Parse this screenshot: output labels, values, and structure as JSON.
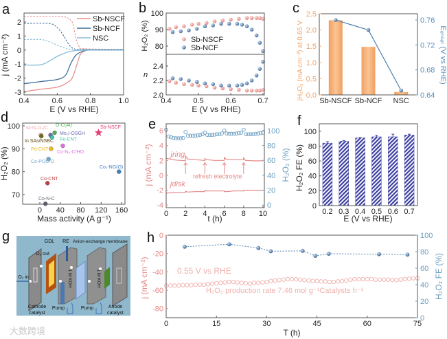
{
  "watermark": "大数跨境",
  "colors": {
    "nscf": "#e8908c",
    "ncf": "#3f6f9a",
    "nsc": "#86bcd8",
    "orange": "#f2a262",
    "blue": "#5b8fb9",
    "hatch": "#3c3fa0",
    "pinkAxis": "#e58787"
  },
  "chart_data": [
    {
      "panel": "a",
      "type": "line",
      "xlabel": "E (V vs RHE)",
      "ylabel": "j (mA cm⁻²)",
      "xlim": [
        0.4,
        1.0
      ],
      "ylim": [
        -3.2,
        2.64
      ],
      "xticks": [
        "0.4",
        "0.6",
        "0.8",
        "1.0"
      ],
      "yticks": [
        "-3",
        "-2",
        "-1",
        "0",
        "1",
        "2"
      ],
      "legend": "top-right",
      "series": [
        {
          "name": "Sb-NSCF",
          "color": "#e8908c",
          "disk": {
            "E": [
              0.4,
              0.5,
              0.6,
              0.65,
              0.69,
              0.72,
              0.74,
              0.77,
              0.8,
              1.0
            ],
            "j": [
              -2.97,
              -2.8,
              -2.65,
              -2.4,
              -2.0,
              -1.0,
              -0.3,
              -0.05,
              0,
              0
            ]
          },
          "ring": {
            "E": [
              0.4,
              0.6,
              0.65,
              0.69,
              0.71,
              0.73,
              0.76,
              1.0
            ],
            "j": [
              2.4,
              2.4,
              2.35,
              2.0,
              1.0,
              0.3,
              0.1,
              0.05
            ]
          }
        },
        {
          "name": "Sb-NCF",
          "color": "#3f6f9a",
          "disk": {
            "E": [
              0.4,
              0.5,
              0.6,
              0.65,
              0.68,
              0.71,
              0.75,
              0.8,
              1.0
            ],
            "j": [
              -2.4,
              -2.25,
              -2.1,
              -1.8,
              -1.0,
              -0.4,
              -0.1,
              0,
              0
            ]
          },
          "ring": {
            "E": [
              0.4,
              0.55,
              0.6,
              0.64,
              0.67,
              0.7,
              0.75,
              1.0
            ],
            "j": [
              1.9,
              1.9,
              1.6,
              1.0,
              0.4,
              0.1,
              0.05,
              0.05
            ]
          }
        },
        {
          "name": "NSC",
          "color": "#86bcd8",
          "disk": {
            "E": [
              0.4,
              0.5,
              0.55,
              0.6,
              0.65,
              0.7,
              0.8,
              1.0
            ],
            "j": [
              -1.07,
              -1.05,
              -0.8,
              -0.45,
              -0.2,
              -0.05,
              0,
              0
            ]
          },
          "ring": {
            "E": [
              0.4,
              0.5,
              0.55,
              0.6,
              0.65,
              0.7,
              1.0
            ],
            "j": [
              0.75,
              0.75,
              0.6,
              0.35,
              0.15,
              0.05,
              0.05
            ]
          }
        }
      ]
    },
    {
      "panel": "b",
      "type": "scatter",
      "xlabel": "E (V vs RHE)",
      "xlim": [
        0.4,
        0.7
      ],
      "xticks": [
        "0.4",
        "0.5",
        "0.6",
        "0.7"
      ],
      "legend": "middle-left",
      "upper": {
        "ylabel": "H₂O₂ (%)",
        "ylim": [
          75,
          100
        ],
        "yticks": [
          "80",
          "90",
          "100"
        ]
      },
      "lower": {
        "ylabel": "n",
        "ylim": [
          2.0,
          2.562
        ],
        "yticks": [
          "2.0",
          "2.2",
          "2.4"
        ]
      },
      "series": [
        {
          "name": "Sb-NSCF",
          "color": "#e8908c",
          "E": [
            0.41,
            0.43,
            0.455,
            0.48,
            0.5,
            0.525,
            0.55,
            0.575,
            0.6,
            0.625,
            0.65,
            0.665,
            0.68,
            0.69,
            0.7
          ],
          "H2O2": [
            90.5,
            91.5,
            92,
            93,
            93.5,
            94,
            95,
            95.5,
            96,
            96.5,
            97,
            97,
            97,
            97,
            96.5
          ],
          "n": [
            2.19,
            2.17,
            2.15,
            2.14,
            2.13,
            2.12,
            2.1,
            2.09,
            2.08,
            2.07,
            2.06,
            2.06,
            2.06,
            2.06,
            2.07
          ]
        },
        {
          "name": "Sb-NCF",
          "color": "#3f6f9a",
          "E": [
            0.42,
            0.445,
            0.47,
            0.495,
            0.52,
            0.545,
            0.57,
            0.595,
            0.62,
            0.635,
            0.65,
            0.665,
            0.68,
            0.69,
            0.7
          ],
          "H2O2": [
            88.5,
            89,
            89.5,
            90.5,
            92,
            92.5,
            93.5,
            93.5,
            93.5,
            93,
            92,
            90,
            86.5,
            82,
            77
          ],
          "n": [
            2.23,
            2.22,
            2.2,
            2.18,
            2.16,
            2.15,
            2.13,
            2.13,
            2.13,
            2.14,
            2.16,
            2.2,
            2.27,
            2.36,
            2.46
          ]
        }
      ]
    },
    {
      "panel": "c",
      "type": "bar",
      "categories": [
        "Sb-NSCF",
        "Sb-NCF",
        "NSC"
      ],
      "bar_values": [
        2.3,
        1.48,
        0.09
      ],
      "line_values": [
        0.76,
        0.744,
        0.647
      ],
      "ylabel": "jH₂O₂ (mA cm⁻²) at 0.65 V",
      "y2label": "Eₒₙₛₑₜ (V vs RHE)",
      "ylim": [
        0,
        2.5
      ],
      "y2lim": [
        0.64,
        0.77
      ],
      "yticks": [
        "0.0",
        "0.5",
        "1.0",
        "1.5",
        "2.0",
        "2.5"
      ],
      "y2ticks": [
        "0.64",
        "0.68",
        "0.72",
        "0.76"
      ]
    },
    {
      "panel": "d",
      "type": "scatter",
      "xlabel": "Mass activity (A g⁻¹)",
      "ylabel": "H₂O₂ (%)",
      "xlim": [
        -33.6,
        166.7
      ],
      "ylim": [
        65.8,
        101.2
      ],
      "xticks": [
        "0",
        "40",
        "80",
        "120",
        "160"
      ],
      "yticks": [
        "70",
        "80",
        "90",
        "100"
      ],
      "points": [
        {
          "label": "Ni-N₂O₂/C",
          "x": 2,
          "y": 96,
          "color": "#f4a8a8",
          "lx": -18,
          "ly": 98.6
        },
        {
          "label": "In SAs/NSBC",
          "x": 3,
          "y": 95.5,
          "color": "#7a6a20",
          "lx": -24,
          "ly": 93.6
        },
        {
          "label": "O-C(Al)",
          "x": 29,
          "y": 97,
          "color": "#4caf50",
          "lx": 16,
          "ly": 99.3
        },
        {
          "label": "Mo₁/-OSGH",
          "x": 21,
          "y": 96,
          "color": "#6a6ab0",
          "lx": 28,
          "ly": 96.6
        },
        {
          "label": "Fe-CNT",
          "x": 24,
          "y": 95,
          "color": "#40c0b0",
          "lx": 28,
          "ly": 93.5
        },
        {
          "label": "Pd-CNT",
          "x": 22,
          "y": 90,
          "color": "#e8b820",
          "lx": -21,
          "ly": 89.2
        },
        {
          "label": "Co-N₃-C/HO",
          "x": 45,
          "y": 91.3,
          "color": "#e070e0",
          "lx": 24,
          "ly": 88.3
        },
        {
          "label": "Co-POC-O",
          "x": 17,
          "y": 85.5,
          "color": "#70a8d0",
          "lx": -3,
          "ly": 82.7
        },
        {
          "label": "Co₁-NG(O)",
          "x": 155,
          "y": 80,
          "color": "#4080c0",
          "lx": 121,
          "ly": 82.2
        },
        {
          "label": "Co-CNT",
          "x": 15,
          "y": 75,
          "color": "#c04040",
          "lx": -0.5,
          "ly": 76.9
        },
        {
          "label": "Co-N-C",
          "x": 11,
          "y": 66,
          "color": "#606070",
          "lx": -2,
          "ly": 68.2
        },
        {
          "label": "Sb-NSCF",
          "x": 115,
          "y": 97,
          "color": "#e0407a",
          "lx": 108,
          "ly": 99.4,
          "star": true
        }
      ]
    },
    {
      "panel": "e",
      "type": "line",
      "xlabel": "t (h)",
      "ylabel": "j (mA cm⁻²)",
      "y2label": "H₂O₂ (%)",
      "xlim": [
        0,
        10.14
      ],
      "ylim": [
        -4.35,
        6.93
      ],
      "y2lim": [
        -3.5,
        109
      ],
      "xticks": [
        "0",
        "2",
        "4",
        "6",
        "8",
        "10"
      ],
      "yticks": [
        "-4",
        "-2",
        "0",
        "2",
        "4",
        "6"
      ],
      "y2ticks": [
        "0",
        "20",
        "40",
        "60",
        "80",
        "100"
      ],
      "ring_label": "jring",
      "disk_label": "jdisk",
      "annotation": "refresh electrolyte",
      "refresh_times": [
        2,
        4,
        6,
        8
      ],
      "t": [
        0,
        0.5,
        1,
        1.5,
        1.99,
        2,
        2.2,
        3,
        3.99,
        4,
        4.2,
        5,
        5.99,
        6,
        6.2,
        7,
        7.99,
        8,
        8.2,
        9,
        10
      ],
      "j_ring": [
        2.3,
        2.15,
        2.05,
        2.0,
        1.95,
        2.6,
        2.2,
        2.1,
        2.0,
        2.25,
        2.1,
        2.0,
        2.0,
        2.4,
        2.15,
        2.1,
        2.1,
        2.35,
        2.0,
        1.95,
        1.95
      ],
      "j_disk": [
        -2.4,
        -2.35,
        -2.35,
        -2.3,
        -2.3,
        -2.15,
        -2.25,
        -2.2,
        -2.2,
        -2.05,
        -2.1,
        -2.1,
        -2.1,
        -2.2,
        -2.2,
        -2.1,
        -2.1,
        -2.0,
        -2.0,
        -2.0,
        -2.0
      ],
      "H2O2": [
        101,
        92,
        91,
        90,
        89.5,
        89.5,
        89.5,
        90,
        98,
        93,
        93,
        93,
        93,
        93.5,
        94,
        95,
        97,
        94,
        94,
        94,
        94.5,
        95,
        95,
        96,
        100,
        96,
        95.5,
        95.5,
        95.5,
        96,
        96.5,
        97,
        101,
        95,
        95,
        95,
        95,
        95.5,
        96,
        96.5,
        97
      ]
    },
    {
      "panel": "f",
      "type": "bar",
      "categories": [
        "0.2",
        "0.3",
        "0.4",
        "0.5",
        "0.6",
        "0.7"
      ],
      "values": [
        84,
        86.5,
        91,
        92.5,
        92.5,
        95
      ],
      "errors": [
        2,
        1,
        0.5,
        2,
        3.5,
        1
      ],
      "xlabel": "E (V vs RHE)",
      "ylabel": "H₂O₂ FE (%)",
      "ylim": [
        0,
        110
      ],
      "yticks": [
        "0",
        "20",
        "40",
        "60",
        "80",
        "100"
      ]
    },
    {
      "panel": "h",
      "type": "line",
      "xlabel": "T (h)",
      "ylabel": "j (mA cm⁻²)",
      "y2label": "H₂O₂ FE (%)",
      "xlim": [
        0,
        75
      ],
      "ylim": [
        -90,
        0
      ],
      "y2lim": [
        0,
        100
      ],
      "xticks": [
        "0",
        "15",
        "30",
        "45",
        "60",
        "75"
      ],
      "yticks": [
        "-80",
        "-60",
        "-40",
        "-20",
        "0"
      ],
      "y2ticks": [
        "0",
        "20",
        "40",
        "60",
        "80",
        "100"
      ],
      "annotation_potential": "0.55 V vs RHE",
      "annotation_rate": "H₂O₂ production rate 7.46 mol g⁻¹Catalysts h⁻¹",
      "j": [
        -55,
        -55,
        -55,
        -55,
        -54.5,
        -54.5,
        -54.5,
        -54,
        -54,
        -54,
        -53.5,
        -53,
        -52.5,
        -52,
        -51.5,
        -51,
        -51,
        -51.5,
        -52,
        -52.5,
        -53,
        -52,
        -52,
        -51.5,
        -51,
        -50,
        -49.5,
        -49,
        -48.5,
        -48,
        -48,
        -48,
        -48.5,
        -49,
        -49.5,
        -50,
        -50,
        -50.5,
        -50.5,
        -51,
        -51,
        -50.5,
        -50,
        -49.5,
        -48.5,
        -48,
        -48,
        -48,
        -48,
        -48,
        -48.5,
        -48.5,
        -48.5,
        -48.5,
        -49,
        -49,
        -48.5,
        -48,
        -47.5,
        -47,
        -47
      ],
      "FE_T": [
        5.5,
        18.8,
        27.5,
        31.2,
        40.7,
        44.5,
        48.5,
        63.5,
        72
      ],
      "FE": [
        86,
        89,
        84.5,
        80.5,
        81,
        75,
        77.5,
        77,
        76.5
      ]
    }
  ],
  "diagram": {
    "panel": "g",
    "labels": {
      "gdl": "GDL",
      "re": "RE",
      "membrane": "Anion-exchange membrane",
      "o2_out": "O₂ out",
      "o2_in": "O₂ in",
      "koh1": "1 M KOH",
      "koh2": "1 M KOH",
      "pump1": "Pump",
      "pump2": "Pump",
      "cathode": [
        "Cathode",
        "catalyst"
      ],
      "anode": [
        "Anode",
        "catalyst"
      ]
    }
  }
}
